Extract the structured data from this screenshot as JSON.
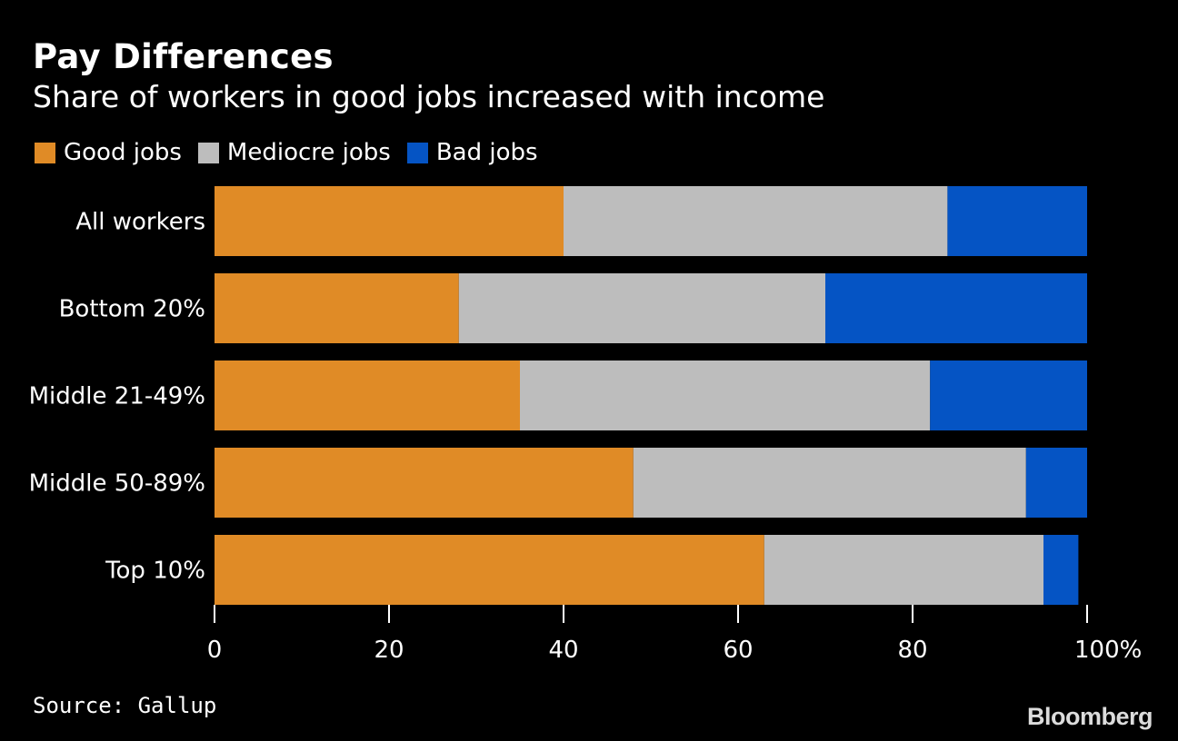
{
  "colors": {
    "background": "#000000",
    "text": "#ffffff",
    "axis": "#ffffff",
    "good": "#e08b26",
    "mediocre": "#bdbdbd",
    "bad": "#0554c4"
  },
  "footer": {
    "source": "Source: Gallup",
    "brand": "Bloomberg"
  },
  "chart_data": {
    "type": "bar",
    "orientation": "horizontal",
    "stacked": true,
    "title": "Pay Differences",
    "subtitle": "Share of workers in good jobs increased with income",
    "legend_position": "top-left",
    "categories": [
      "All workers",
      "Bottom 20%",
      "Middle 21-49%",
      "Middle 50-89%",
      "Top 10%"
    ],
    "series": [
      {
        "name": "Good jobs",
        "color": "#e08b26",
        "values": [
          40,
          28,
          35,
          48,
          63
        ]
      },
      {
        "name": "Mediocre jobs",
        "color": "#bdbdbd",
        "values": [
          44,
          42,
          47,
          45,
          32
        ]
      },
      {
        "name": "Bad jobs",
        "color": "#0554c4",
        "values": [
          16,
          30,
          18,
          7,
          4
        ]
      }
    ],
    "xlim": [
      0,
      100
    ],
    "xticks": [
      0,
      20,
      40,
      60,
      80,
      100
    ],
    "xtick_labels": [
      "0",
      "20",
      "40",
      "60",
      "80",
      "100%"
    ],
    "grid": false
  }
}
